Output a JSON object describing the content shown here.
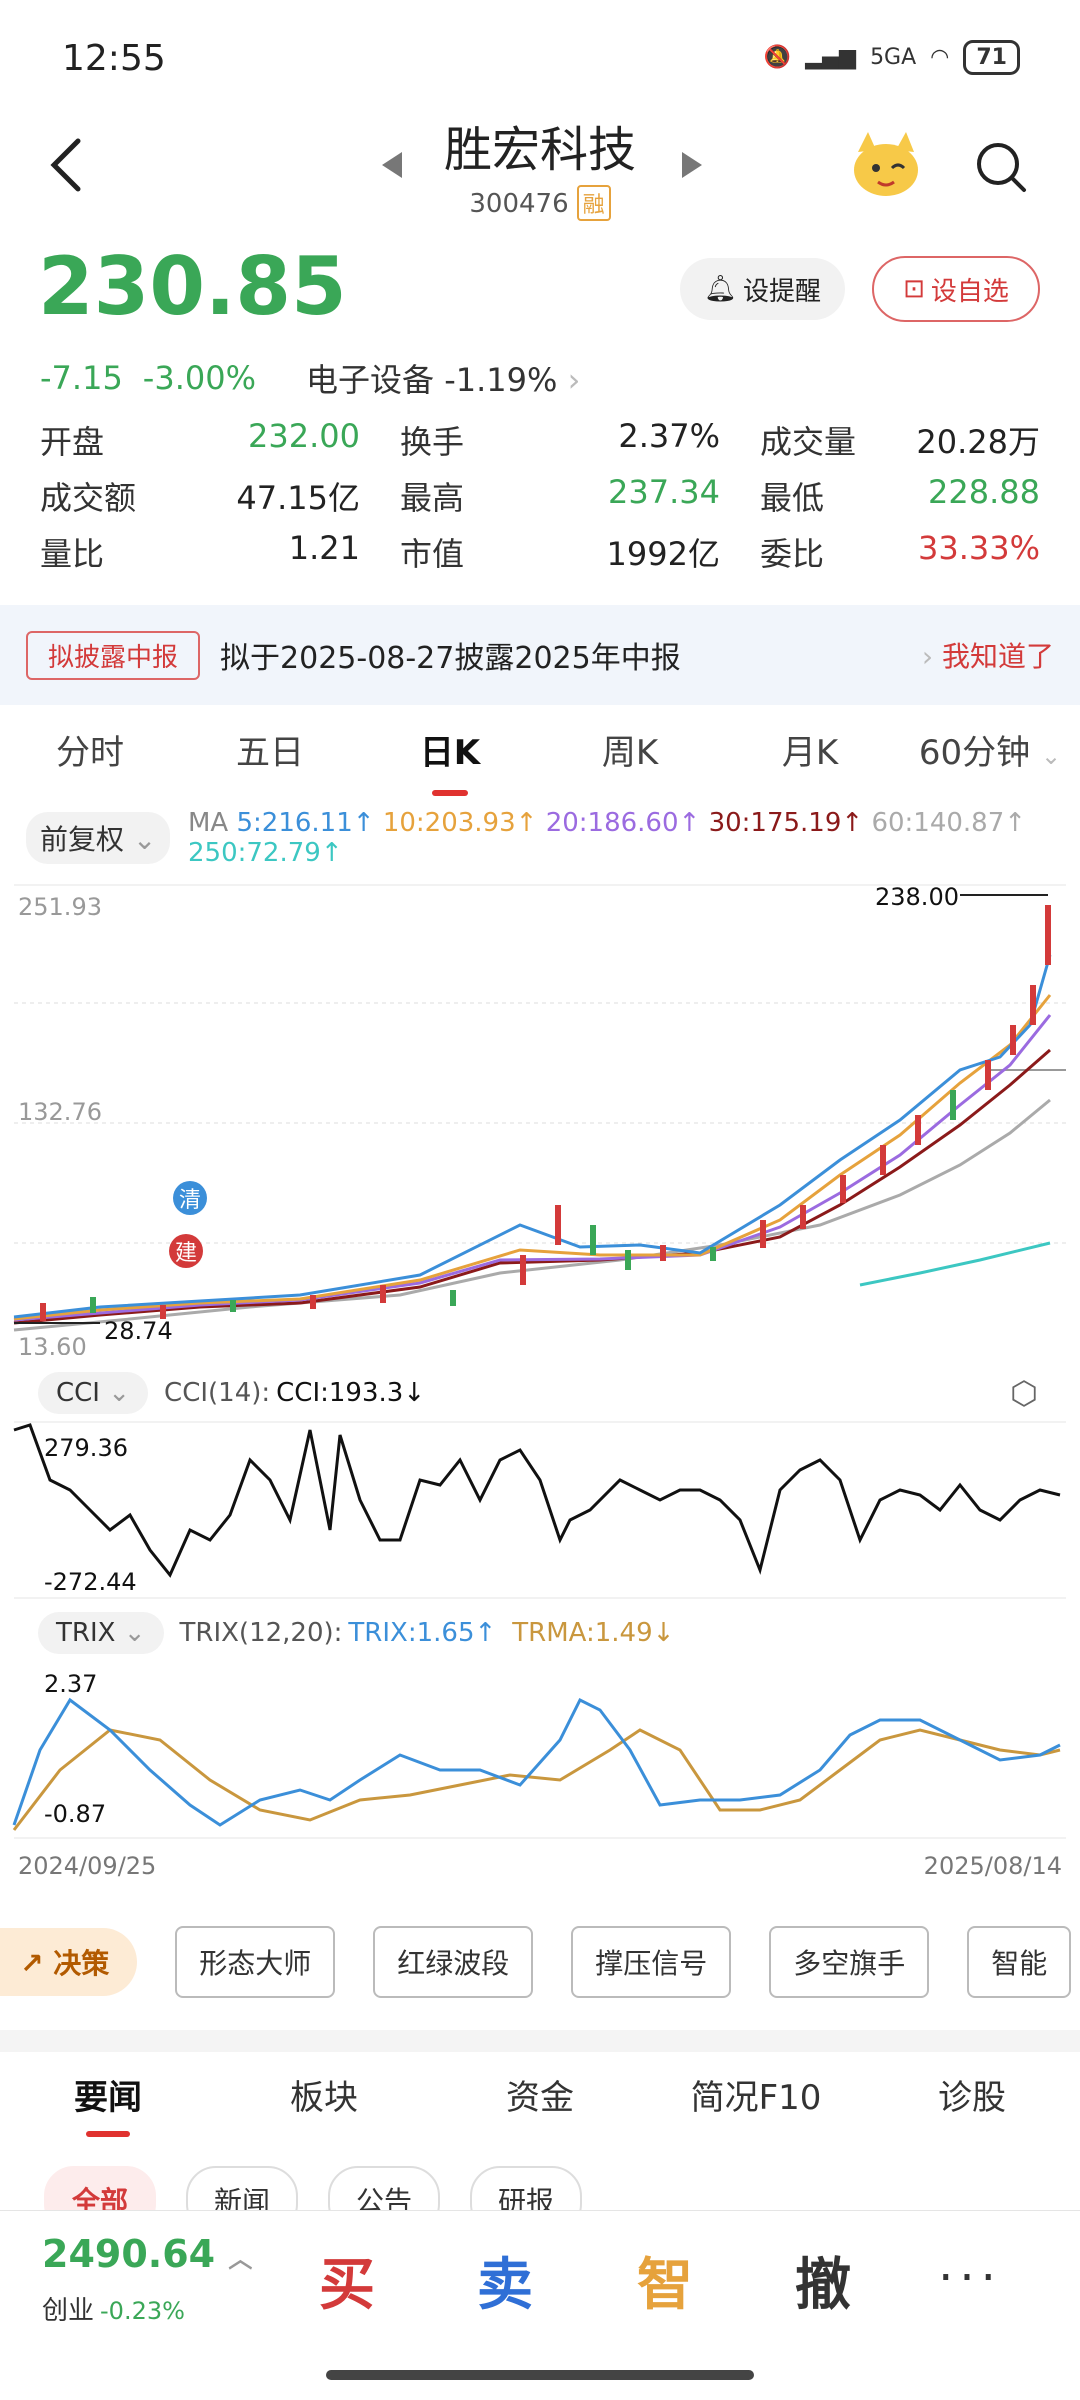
{
  "status": {
    "time": "12:55",
    "network": "5GA",
    "battery": "71"
  },
  "header": {
    "title": "胜宏科技",
    "code": "300476",
    "margin_tag": "融"
  },
  "quote": {
    "price": "230.85",
    "change": "-7.15",
    "change_pct": "-3.00%",
    "sector": "电子设备",
    "sector_pct": "-1.19%",
    "alert_label": "设提醒",
    "watch_label": "设自选"
  },
  "stats": [
    [
      {
        "label": "开盘",
        "value": "232.00",
        "color": "green"
      },
      {
        "label": "换手",
        "value": "2.37%",
        "color": ""
      },
      {
        "label": "成交量",
        "value": "20.28万",
        "color": ""
      }
    ],
    [
      {
        "label": "成交额",
        "value": "47.15亿",
        "color": ""
      },
      {
        "label": "最高",
        "value": "237.34",
        "color": "green"
      },
      {
        "label": "最低",
        "value": "228.88",
        "color": "green"
      }
    ],
    [
      {
        "label": "量比",
        "value": "1.21",
        "color": ""
      },
      {
        "label": "市值",
        "value": "1992亿",
        "color": ""
      },
      {
        "label": "委比",
        "value": "33.33%",
        "color": "red"
      }
    ]
  ],
  "notice": {
    "tag": "拟披露中报",
    "text": "拟于2025-08-27披露2025年中报",
    "action": "我知道了"
  },
  "tabs": [
    "分时",
    "五日",
    "日K",
    "周K",
    "月K",
    "60分钟"
  ],
  "chart": {
    "fuquan": "前复权",
    "ma_prefix": "MA",
    "ma": [
      {
        "label": "5:216.11↑",
        "color": "#3b8fd9"
      },
      {
        "label": "10:203.93↑",
        "color": "#e6a23c"
      },
      {
        "label": "20:186.60↑",
        "color": "#9b6be0"
      },
      {
        "label": "30:175.19↑",
        "color": "#8b1a1a"
      },
      {
        "label": "60:140.87↑",
        "color": "#aaaaaa"
      },
      {
        "label": "250:72.79↑",
        "color": "#3cc7c2"
      }
    ],
    "y_top": "251.93",
    "y_mid": "132.76",
    "y_bottom": "13.60",
    "high_label": "238.00",
    "low_label": "28.74",
    "marker_qing": "清",
    "marker_jian": "建"
  },
  "cci": {
    "pill": "CCI",
    "params": "CCI(14):",
    "value": "CCI:193.3↓",
    "top": "279.36",
    "bottom": "-272.44"
  },
  "trix": {
    "pill": "TRIX",
    "params": "TRIX(12,20):",
    "trix": "TRIX:1.65↑",
    "trma": "TRMA:1.49↓",
    "top": "2.37",
    "bottom": "-0.87"
  },
  "dates": {
    "start": "2024/09/25",
    "end": "2025/08/14"
  },
  "tools": {
    "decision": "决策",
    "items": [
      "形态大师",
      "红绿波段",
      "撑压信号",
      "多空旗手",
      "智能"
    ]
  },
  "news_tabs": [
    "要闻",
    "板块",
    "资金",
    "简况F10",
    "诊股"
  ],
  "sub_tabs": [
    "全部",
    "新闻",
    "公告",
    "研报"
  ],
  "bottom": {
    "index_value": "2490.64",
    "index_name": "创业",
    "index_pct": "-0.23%",
    "buy": "买",
    "sell": "卖",
    "smart": "智",
    "cancel": "撤",
    "more": "···"
  }
}
